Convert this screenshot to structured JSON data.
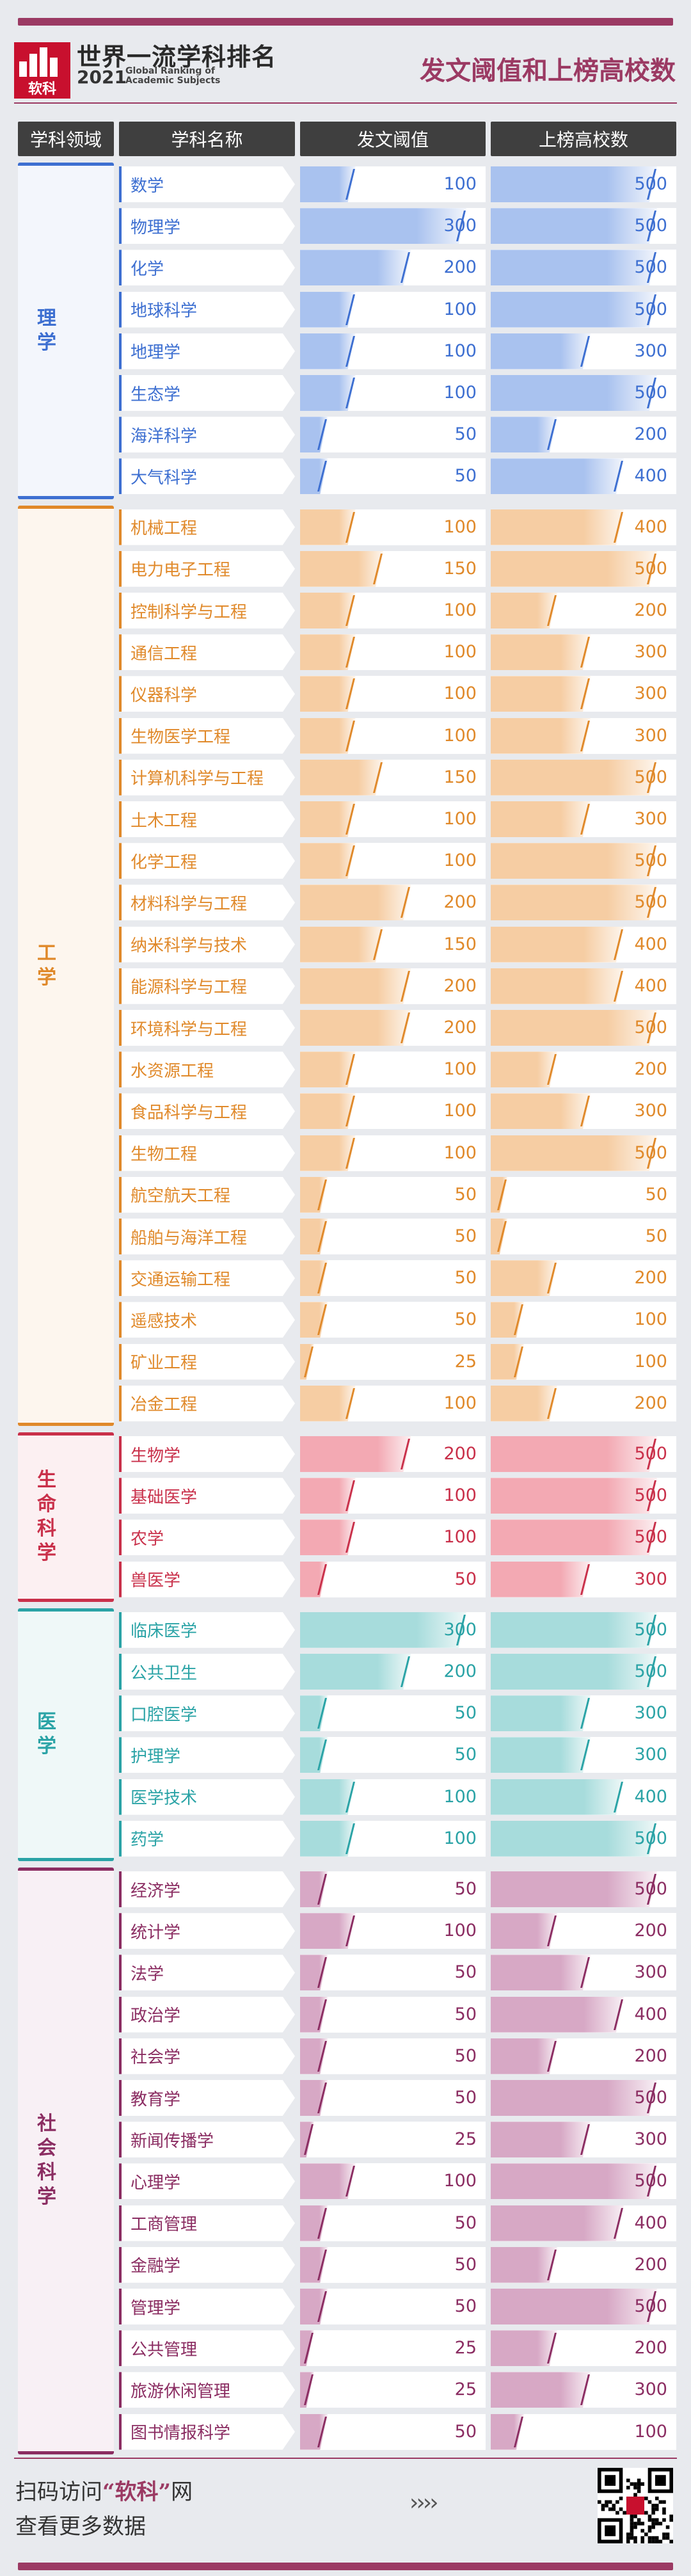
{
  "header": {
    "logo_text": "软科",
    "title_cn": "世界一流学科排名",
    "year": "2021",
    "title_en": "Global Ranking of Academic Subjects",
    "main_title": "发文阈值和上榜高校数"
  },
  "columns": {
    "domain": "学科领域",
    "subject": "学科名称",
    "threshold": "发文阈值",
    "count": "上榜高校数"
  },
  "colors": {
    "理学": {
      "accent": "#3d6fd1",
      "bar": "#a9c2ef",
      "bg": "#f3f6fc"
    },
    "工学": {
      "accent": "#e0892a",
      "bar": "#f6cda3",
      "bg": "#fdf6ee"
    },
    "生命科学": {
      "accent": "#c9304a",
      "bar": "#f3a9b3",
      "bg": "#fcf0f2"
    },
    "医学": {
      "accent": "#2aa3a6",
      "bar": "#a7dcdc",
      "bg": "#eff8f8"
    },
    "社会科学": {
      "accent": "#8b2d62",
      "bar": "#d7a8c5",
      "bg": "#f8f0f5"
    }
  },
  "chart_data": {
    "type": "bar",
    "series": [
      {
        "name": "发文阈值",
        "max": 300
      },
      {
        "name": "上榜高校数",
        "max": 500
      }
    ],
    "groups": [
      {
        "domain": "理学",
        "rows": [
          {
            "subject": "数学",
            "threshold": 100,
            "count": 500
          },
          {
            "subject": "物理学",
            "threshold": 300,
            "count": 500
          },
          {
            "subject": "化学",
            "threshold": 200,
            "count": 500
          },
          {
            "subject": "地球科学",
            "threshold": 100,
            "count": 500
          },
          {
            "subject": "地理学",
            "threshold": 100,
            "count": 300
          },
          {
            "subject": "生态学",
            "threshold": 100,
            "count": 500
          },
          {
            "subject": "海洋科学",
            "threshold": 50,
            "count": 200
          },
          {
            "subject": "大气科学",
            "threshold": 50,
            "count": 400
          }
        ]
      },
      {
        "domain": "工学",
        "rows": [
          {
            "subject": "机械工程",
            "threshold": 100,
            "count": 400
          },
          {
            "subject": "电力电子工程",
            "threshold": 150,
            "count": 500
          },
          {
            "subject": "控制科学与工程",
            "threshold": 100,
            "count": 200
          },
          {
            "subject": "通信工程",
            "threshold": 100,
            "count": 300
          },
          {
            "subject": "仪器科学",
            "threshold": 100,
            "count": 300
          },
          {
            "subject": "生物医学工程",
            "threshold": 100,
            "count": 300
          },
          {
            "subject": "计算机科学与工程",
            "threshold": 150,
            "count": 500
          },
          {
            "subject": "土木工程",
            "threshold": 100,
            "count": 300
          },
          {
            "subject": "化学工程",
            "threshold": 100,
            "count": 500
          },
          {
            "subject": "材料科学与工程",
            "threshold": 200,
            "count": 500
          },
          {
            "subject": "纳米科学与技术",
            "threshold": 150,
            "count": 400
          },
          {
            "subject": "能源科学与工程",
            "threshold": 200,
            "count": 400
          },
          {
            "subject": "环境科学与工程",
            "threshold": 200,
            "count": 500
          },
          {
            "subject": "水资源工程",
            "threshold": 100,
            "count": 200
          },
          {
            "subject": "食品科学与工程",
            "threshold": 100,
            "count": 300
          },
          {
            "subject": "生物工程",
            "threshold": 100,
            "count": 500
          },
          {
            "subject": "航空航天工程",
            "threshold": 50,
            "count": 50
          },
          {
            "subject": "船舶与海洋工程",
            "threshold": 50,
            "count": 50
          },
          {
            "subject": "交通运输工程",
            "threshold": 50,
            "count": 200
          },
          {
            "subject": "遥感技术",
            "threshold": 50,
            "count": 100
          },
          {
            "subject": "矿业工程",
            "threshold": 25,
            "count": 100
          },
          {
            "subject": "冶金工程",
            "threshold": 100,
            "count": 200
          }
        ]
      },
      {
        "domain": "生命科学",
        "rows": [
          {
            "subject": "生物学",
            "threshold": 200,
            "count": 500
          },
          {
            "subject": "基础医学",
            "threshold": 100,
            "count": 500
          },
          {
            "subject": "农学",
            "threshold": 100,
            "count": 500
          },
          {
            "subject": "兽医学",
            "threshold": 50,
            "count": 300
          }
        ]
      },
      {
        "domain": "医学",
        "rows": [
          {
            "subject": "临床医学",
            "threshold": 300,
            "count": 500
          },
          {
            "subject": "公共卫生",
            "threshold": 200,
            "count": 500
          },
          {
            "subject": "口腔医学",
            "threshold": 50,
            "count": 300
          },
          {
            "subject": "护理学",
            "threshold": 50,
            "count": 300
          },
          {
            "subject": "医学技术",
            "threshold": 100,
            "count": 400
          },
          {
            "subject": "药学",
            "threshold": 100,
            "count": 500
          }
        ]
      },
      {
        "domain": "社会科学",
        "rows": [
          {
            "subject": "经济学",
            "threshold": 50,
            "count": 500
          },
          {
            "subject": "统计学",
            "threshold": 100,
            "count": 200
          },
          {
            "subject": "法学",
            "threshold": 50,
            "count": 300
          },
          {
            "subject": "政治学",
            "threshold": 50,
            "count": 400
          },
          {
            "subject": "社会学",
            "threshold": 50,
            "count": 200
          },
          {
            "subject": "教育学",
            "threshold": 50,
            "count": 500
          },
          {
            "subject": "新闻传播学",
            "threshold": 25,
            "count": 300
          },
          {
            "subject": "心理学",
            "threshold": 100,
            "count": 500
          },
          {
            "subject": "工商管理",
            "threshold": 50,
            "count": 400
          },
          {
            "subject": "金融学",
            "threshold": 50,
            "count": 200
          },
          {
            "subject": "管理学",
            "threshold": 50,
            "count": 500
          },
          {
            "subject": "公共管理",
            "threshold": 25,
            "count": 200
          },
          {
            "subject": "旅游休闲管理",
            "threshold": 25,
            "count": 300
          },
          {
            "subject": "图书情报科学",
            "threshold": 50,
            "count": 100
          }
        ]
      }
    ]
  },
  "footer": {
    "line1_pre": "扫码访问",
    "line1_brand": "“软科”",
    "line1_post": "网",
    "line2": "查看更多数据",
    "chevrons": "››››"
  }
}
